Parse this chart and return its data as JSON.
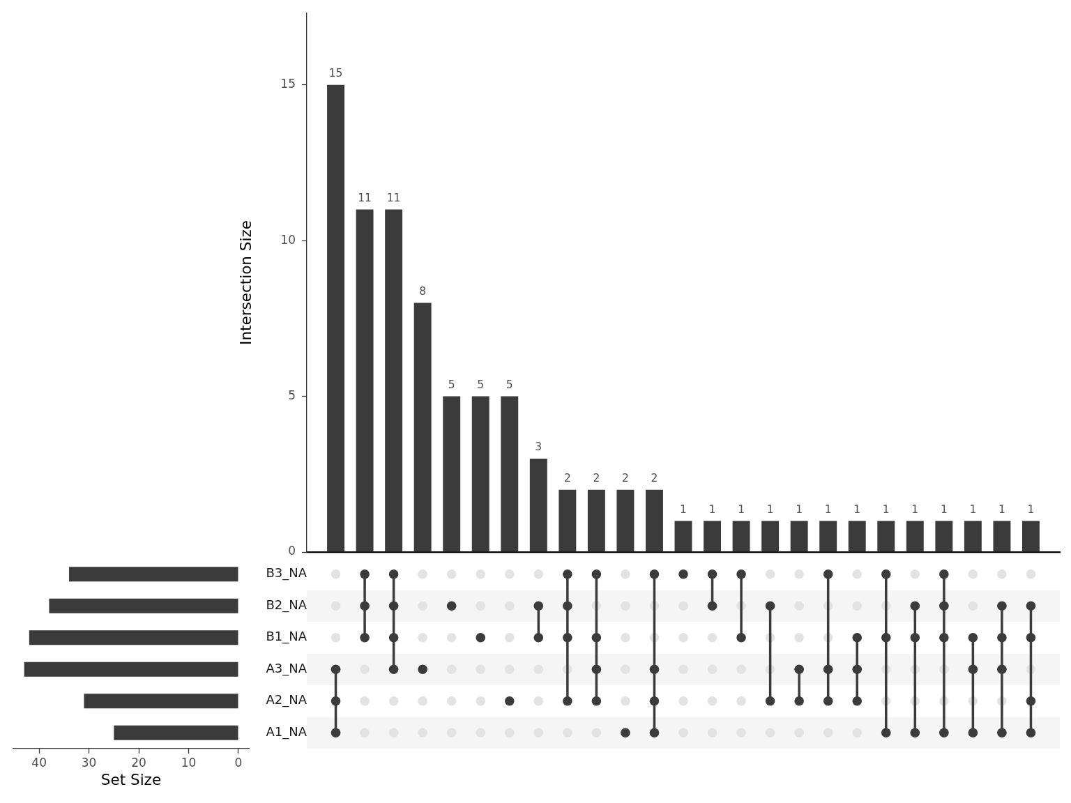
{
  "chart_data": [
    {
      "type": "bar",
      "ylabel": "Intersection Size",
      "categories": [
        null,
        null,
        null,
        null,
        null,
        null,
        null,
        null,
        null,
        null,
        null,
        null,
        null,
        null,
        null,
        null,
        null,
        null,
        null,
        null,
        null,
        null,
        null,
        null,
        null
      ],
      "values": [
        15,
        11,
        11,
        8,
        5,
        5,
        5,
        3,
        2,
        2,
        2,
        2,
        1,
        1,
        1,
        1,
        1,
        1,
        1,
        1,
        1,
        1,
        1,
        1,
        1
      ],
      "color": "#3b3b3b",
      "ylim": [
        0,
        17.3
      ],
      "yticks": [
        0,
        5,
        10,
        15
      ],
      "data_labels": true
    },
    {
      "type": "bar",
      "orientation": "horizontal",
      "categories": [
        "B3_NA",
        "B2_NA",
        "B1_NA",
        "A3_NA",
        "A2_NA",
        "A1_NA"
      ],
      "values": [
        34,
        38,
        42,
        43,
        31,
        25
      ],
      "color": "#3b3b3b",
      "xlim": [
        45.2,
        -2.1
      ],
      "xticks": [
        40,
        30,
        20,
        10,
        0
      ],
      "xlabel": "Set Size"
    }
  ]
}
